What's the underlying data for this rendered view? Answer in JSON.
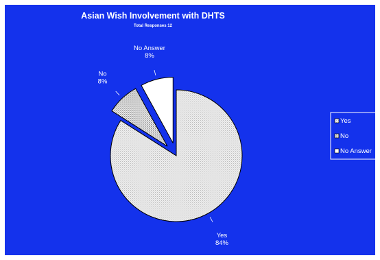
{
  "colors": {
    "background": "#1432ec",
    "yes": "#e6e6e6",
    "no": "#d4d4d4",
    "no_answer": "#ffffff",
    "outline": "#000000"
  },
  "chart_data": {
    "type": "pie",
    "title": "Asian Wish Involvement with DHTS",
    "subtitle": "Total Responses 12",
    "start_angle_deg": 0,
    "slices": [
      {
        "name": "Yes",
        "value": 84,
        "label": "84%",
        "exploded": false,
        "pattern": "stipple-fine"
      },
      {
        "name": "No",
        "value": 8,
        "label": "8%",
        "exploded": true,
        "pattern": "stipple-coarse"
      },
      {
        "name": "No Answer",
        "value": 8,
        "label": "8%",
        "exploded": true,
        "pattern": "solid"
      }
    ],
    "legend": {
      "placement": "right",
      "entries": [
        "Yes",
        "No",
        "No Answer"
      ]
    }
  }
}
